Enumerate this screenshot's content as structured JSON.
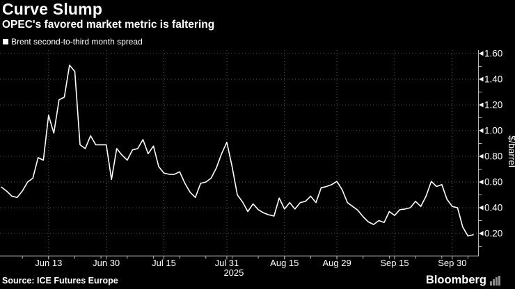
{
  "header": {
    "title": "Curve Slump",
    "subtitle": "OPEC's favored market metric is faltering"
  },
  "legend": {
    "label": "Brent second-to-third month spread",
    "marker_color": "#ffffff"
  },
  "footer": {
    "source": "Source: ICE Futures Europe",
    "brand": "Bloomberg",
    "logo_icon": "bloomberg-bars-logo"
  },
  "colors": {
    "background": "#000000",
    "line": "#ffffff",
    "grid": "#5a5a5a",
    "axis": "#b5b5b5",
    "text": "#ffffff"
  },
  "chart_data": {
    "type": "line",
    "title": "Curve Slump",
    "subtitle": "OPEC's favored market metric is faltering",
    "xlabel": "",
    "ylabel": "$/barrel",
    "ylim": [
      0.03,
      1.63
    ],
    "grid": "dotted",
    "legend_position": "top-left",
    "year_label": "2025",
    "y_ticks": [
      {
        "value": 0.2,
        "label": "0.20"
      },
      {
        "value": 0.4,
        "label": "0.40"
      },
      {
        "value": 0.6,
        "label": "0.60"
      },
      {
        "value": 0.8,
        "label": "0.80"
      },
      {
        "value": 1.0,
        "label": "1.00"
      },
      {
        "value": 1.2,
        "label": "1.20"
      },
      {
        "value": 1.4,
        "label": "1.40"
      },
      {
        "value": 1.6,
        "label": "1.60"
      }
    ],
    "y_minor_ticks": [
      0.1,
      0.3,
      0.5,
      0.7,
      0.9,
      1.1,
      1.3,
      1.5
    ],
    "x_ticks": [
      {
        "index": 9,
        "label": "Jun 13"
      },
      {
        "index": 20,
        "label": "Jun 30"
      },
      {
        "index": 31,
        "label": "Jul 15"
      },
      {
        "index": 43,
        "label": "Jul 31",
        "year": "2025"
      },
      {
        "index": 54,
        "label": "Aug 15"
      },
      {
        "index": 64,
        "label": "Aug 29"
      },
      {
        "index": 75,
        "label": "Sep 15"
      },
      {
        "index": 86,
        "label": "Sep 30"
      }
    ],
    "series": [
      {
        "name": "Brent second-to-third month spread",
        "color": "#ffffff",
        "dates": [
          "Jun 2",
          "Jun 3",
          "Jun 4",
          "Jun 5",
          "Jun 6",
          "Jun 9",
          "Jun 10",
          "Jun 11",
          "Jun 12",
          "Jun 13",
          "Jun 16",
          "Jun 17",
          "Jun 18",
          "Jun 19",
          "Jun 20",
          "Jun 23",
          "Jun 24",
          "Jun 25",
          "Jun 26",
          "Jun 27",
          "Jun 30",
          "Jul 1",
          "Jul 2",
          "Jul 3",
          "Jul 4",
          "Jul 7",
          "Jul 8",
          "Jul 9",
          "Jul 10",
          "Jul 11",
          "Jul 14",
          "Jul 15",
          "Jul 16",
          "Jul 17",
          "Jul 18",
          "Jul 21",
          "Jul 22",
          "Jul 23",
          "Jul 24",
          "Jul 25",
          "Jul 28",
          "Jul 29",
          "Jul 30",
          "Jul 31",
          "Aug 1",
          "Aug 4",
          "Aug 5",
          "Aug 6",
          "Aug 7",
          "Aug 8",
          "Aug 11",
          "Aug 12",
          "Aug 13",
          "Aug 14",
          "Aug 15",
          "Aug 18",
          "Aug 19",
          "Aug 20",
          "Aug 21",
          "Aug 22",
          "Aug 25",
          "Aug 26",
          "Aug 27",
          "Aug 28",
          "Aug 29",
          "Sep 1",
          "Sep 2",
          "Sep 3",
          "Sep 4",
          "Sep 5",
          "Sep 8",
          "Sep 9",
          "Sep 10",
          "Sep 11",
          "Sep 12",
          "Sep 15",
          "Sep 16",
          "Sep 17",
          "Sep 18",
          "Sep 19",
          "Sep 22",
          "Sep 23",
          "Sep 24",
          "Sep 25",
          "Sep 26",
          "Sep 29",
          "Sep 30",
          "Oct 1",
          "Oct 2",
          "Oct 3",
          "Oct 6"
        ],
        "values": [
          0.56,
          0.53,
          0.49,
          0.48,
          0.53,
          0.6,
          0.63,
          0.79,
          0.77,
          1.12,
          0.98,
          1.24,
          1.26,
          1.51,
          1.46,
          0.89,
          0.86,
          0.96,
          0.89,
          0.89,
          0.89,
          0.62,
          0.86,
          0.81,
          0.77,
          0.85,
          0.86,
          0.93,
          0.82,
          0.88,
          0.72,
          0.67,
          0.66,
          0.66,
          0.68,
          0.59,
          0.52,
          0.48,
          0.59,
          0.6,
          0.63,
          0.71,
          0.82,
          0.91,
          0.72,
          0.5,
          0.445,
          0.37,
          0.43,
          0.385,
          0.36,
          0.345,
          0.335,
          0.475,
          0.39,
          0.44,
          0.39,
          0.44,
          0.45,
          0.49,
          0.44,
          0.555,
          0.565,
          0.58,
          0.605,
          0.54,
          0.44,
          0.41,
          0.38,
          0.33,
          0.29,
          0.27,
          0.3,
          0.285,
          0.37,
          0.34,
          0.385,
          0.39,
          0.4,
          0.45,
          0.41,
          0.49,
          0.605,
          0.565,
          0.58,
          0.465,
          0.41,
          0.4,
          0.25,
          0.18,
          0.19
        ]
      }
    ]
  }
}
